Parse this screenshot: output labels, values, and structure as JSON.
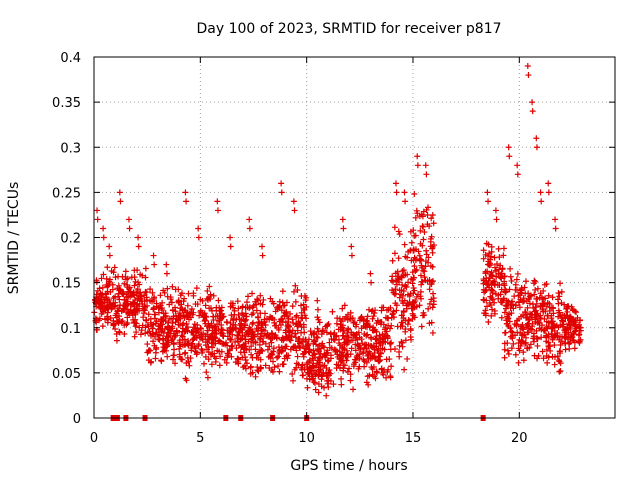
{
  "chart_data": {
    "type": "scatter",
    "title": "Day 100 of 2023, SRMTID for receiver p817",
    "xlabel": "GPS time / hours",
    "ylabel": "SRMTID / TECUs",
    "xlim": [
      0,
      24.5
    ],
    "ylim": [
      0,
      0.4
    ],
    "xticks": [
      0,
      5,
      10,
      15,
      20
    ],
    "xtick_labels": [
      "0",
      "5",
      "10",
      "15",
      "20"
    ],
    "yticks": [
      0,
      0.05,
      0.1,
      0.15,
      0.2,
      0.25,
      0.3,
      0.35,
      0.4
    ],
    "ytick_labels": [
      "0",
      "0.05",
      "0.1",
      "0.15",
      "0.2",
      "0.25",
      "0.3",
      "0.35",
      "0.4"
    ],
    "grid": true,
    "marker": "plus",
    "color": "#e00000",
    "series": [
      {
        "name": "SRMTID",
        "segments": [
          {
            "x_start": 0.0,
            "x_end": 1.0,
            "low": 0.09,
            "high": 0.17,
            "spikes": [
              0.23,
              0.21,
              0.19
            ]
          },
          {
            "x_start": 1.0,
            "x_end": 2.5,
            "low": 0.08,
            "high": 0.17,
            "spikes": [
              0.25,
              0.22,
              0.2
            ]
          },
          {
            "x_start": 2.5,
            "x_end": 4.0,
            "low": 0.05,
            "high": 0.15,
            "spikes": [
              0.18,
              0.17
            ]
          },
          {
            "x_start": 4.0,
            "x_end": 5.5,
            "low": 0.04,
            "high": 0.15,
            "spikes": [
              0.25,
              0.21
            ]
          },
          {
            "x_start": 5.5,
            "x_end": 7.0,
            "low": 0.05,
            "high": 0.14,
            "spikes": [
              0.24,
              0.2
            ]
          },
          {
            "x_start": 7.0,
            "x_end": 8.5,
            "low": 0.04,
            "high": 0.14,
            "spikes": [
              0.22,
              0.19
            ]
          },
          {
            "x_start": 8.5,
            "x_end": 10.0,
            "low": 0.04,
            "high": 0.15,
            "spikes": [
              0.26,
              0.24
            ]
          },
          {
            "x_start": 10.0,
            "x_end": 11.5,
            "low": 0.02,
            "high": 0.12,
            "spikes": [
              0.13
            ]
          },
          {
            "x_start": 11.5,
            "x_end": 12.5,
            "low": 0.03,
            "high": 0.13,
            "spikes": [
              0.22,
              0.19
            ]
          },
          {
            "x_start": 12.5,
            "x_end": 14.0,
            "low": 0.03,
            "high": 0.13,
            "spikes": [
              0.16
            ]
          },
          {
            "x_start": 14.0,
            "x_end": 15.0,
            "low": 0.05,
            "high": 0.22,
            "spikes": [
              0.26,
              0.25
            ]
          },
          {
            "x_start": 15.0,
            "x_end": 16.0,
            "low": 0.09,
            "high": 0.25,
            "spikes": [
              0.29,
              0.28
            ]
          },
          {
            "x_start": 18.3,
            "x_end": 19.3,
            "low": 0.1,
            "high": 0.2,
            "spikes": [
              0.25,
              0.23
            ]
          },
          {
            "x_start": 19.3,
            "x_end": 20.3,
            "low": 0.05,
            "high": 0.17,
            "spikes": [
              0.3,
              0.28
            ]
          },
          {
            "x_start": 20.3,
            "x_end": 21.2,
            "low": 0.06,
            "high": 0.16,
            "spikes": [
              0.39,
              0.35,
              0.31,
              0.25
            ]
          },
          {
            "x_start": 21.2,
            "x_end": 22.0,
            "low": 0.04,
            "high": 0.16,
            "spikes": [
              0.26,
              0.22
            ]
          },
          {
            "x_start": 22.0,
            "x_end": 22.9,
            "low": 0.07,
            "high": 0.13,
            "spikes": []
          }
        ],
        "zero_points": [
          0.9,
          1.1,
          1.5,
          2.4,
          6.2,
          6.9,
          8.4,
          10.0,
          18.3
        ]
      }
    ]
  }
}
